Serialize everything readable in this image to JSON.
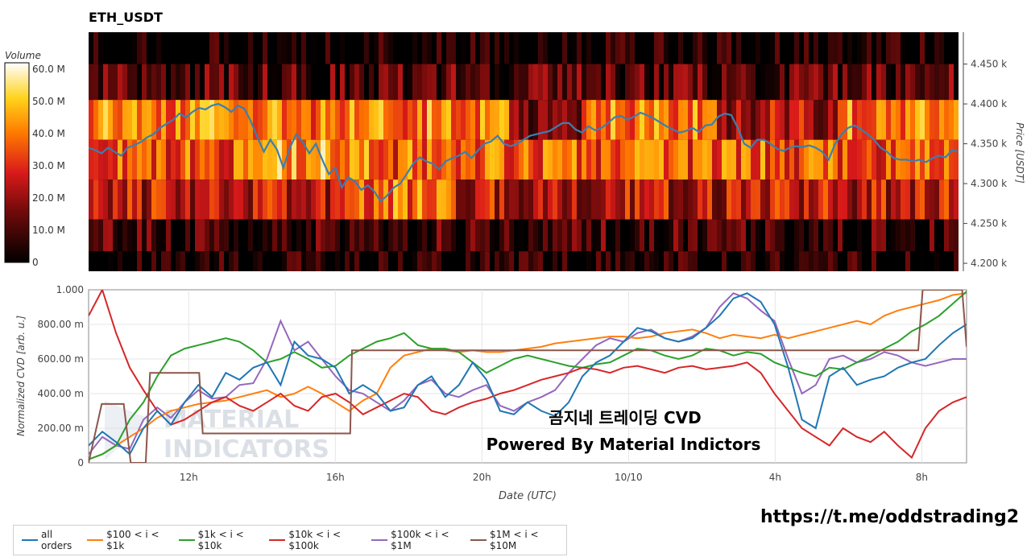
{
  "title": "ETH_USDT",
  "watermark_url": "https://t.me/oddstrading2",
  "overlay_title": "곰지네 트레이딩 CVD",
  "overlay_subtitle": "Powered By Material Indictors",
  "bg_logo_text": [
    "MATERIAL",
    "INDICATORS"
  ],
  "colors": {
    "all": "#1f77b4",
    "s1": "#ff7f0e",
    "s2": "#2ca02c",
    "s3": "#d62728",
    "s4": "#9467bd",
    "s5": "#8c564b"
  },
  "chart_data": [
    {
      "type": "heatmap",
      "title": "ETH_USDT",
      "colorbar_label": "Volume",
      "colorbar_ticks": [
        "60.0 M",
        "50.0 M",
        "40.0 M",
        "30.0 M",
        "20.0 M",
        "10.0 M",
        "0"
      ],
      "colorbar_range": [
        0,
        60000000
      ],
      "ylabel": "Price [USDT]",
      "y_ticks": [
        "4.450 k",
        "4.400 k",
        "4.350 k",
        "4.300 k",
        "4.250 k",
        "4.200 k"
      ],
      "ylim": [
        4190,
        4490
      ],
      "price_bins": [
        4470,
        4430,
        4380,
        4330,
        4280,
        4230,
        4195
      ],
      "price_line": {
        "name": "price",
        "color": "#3a7fb0",
        "values": [
          4345,
          4342,
          4338,
          4345,
          4340,
          4335,
          4345,
          4348,
          4352,
          4358,
          4362,
          4370,
          4375,
          4380,
          4388,
          4383,
          4390,
          4395,
          4393,
          4398,
          4400,
          4396,
          4390,
          4398,
          4394,
          4378,
          4358,
          4340,
          4355,
          4343,
          4320,
          4345,
          4362,
          4352,
          4338,
          4350,
          4330,
          4312,
          4320,
          4295,
          4308,
          4303,
          4292,
          4298,
          4290,
          4278,
          4285,
          4295,
          4300,
          4312,
          4325,
          4333,
          4328,
          4325,
          4318,
          4328,
          4332,
          4335,
          4340,
          4332,
          4342,
          4350,
          4353,
          4360,
          4350,
          4347,
          4350,
          4355,
          4360,
          4362,
          4364,
          4366,
          4371,
          4376,
          4376,
          4368,
          4364,
          4372,
          4367,
          4370,
          4376,
          4383,
          4385,
          4380,
          4384,
          4389,
          4386,
          4382,
          4377,
          4372,
          4368,
          4364,
          4366,
          4370,
          4365,
          4373,
          4374,
          4384,
          4388,
          4386,
          4370,
          4350,
          4345,
          4355,
          4355,
          4350,
          4344,
          4341,
          4345,
          4347,
          4346,
          4348,
          4345,
          4340,
          4330,
          4350,
          4362,
          4370,
          4373,
          4368,
          4362,
          4355,
          4345,
          4340,
          4332,
          4330,
          4330,
          4328,
          4330,
          4327,
          4332,
          4335,
          4333,
          4342,
          4340
        ]
      }
    },
    {
      "type": "line",
      "xlabel": "Date (UTC)",
      "ylabel": "Normalized CVD [arb. u.]",
      "x_ticks": [
        "12h",
        "16h",
        "20h",
        "10/10",
        "4h",
        "8h"
      ],
      "y_ticks": [
        "0",
        "200.00 m",
        "400.00 m",
        "600.00 m",
        "800.00 m",
        "1.000"
      ],
      "ylim": [
        0,
        1
      ],
      "grid": true,
      "legend_position": "bottom-left",
      "series": [
        {
          "name": "all orders",
          "values": [
            0.1,
            0.18,
            0.12,
            0.05,
            0.2,
            0.3,
            0.22,
            0.35,
            0.45,
            0.38,
            0.52,
            0.48,
            0.55,
            0.58,
            0.45,
            0.7,
            0.62,
            0.6,
            0.55,
            0.4,
            0.45,
            0.4,
            0.3,
            0.32,
            0.45,
            0.5,
            0.38,
            0.45,
            0.58,
            0.48,
            0.3,
            0.28,
            0.35,
            0.3,
            0.27,
            0.35,
            0.5,
            0.58,
            0.62,
            0.7,
            0.78,
            0.76,
            0.72,
            0.7,
            0.72,
            0.78,
            0.85,
            0.95,
            0.98,
            0.93,
            0.8,
            0.55,
            0.25,
            0.2,
            0.5,
            0.55,
            0.45,
            0.48,
            0.5,
            0.55,
            0.58,
            0.6,
            0.68,
            0.75,
            0.8
          ]
        },
        {
          "name": "$100 < i < $1k",
          "values": [
            0.02,
            0.05,
            0.1,
            0.15,
            0.2,
            0.26,
            0.3,
            0.32,
            0.34,
            0.35,
            0.36,
            0.38,
            0.4,
            0.42,
            0.38,
            0.4,
            0.44,
            0.4,
            0.35,
            0.3,
            0.36,
            0.4,
            0.55,
            0.62,
            0.64,
            0.66,
            0.65,
            0.64,
            0.65,
            0.64,
            0.64,
            0.65,
            0.66,
            0.67,
            0.69,
            0.7,
            0.71,
            0.72,
            0.73,
            0.73,
            0.72,
            0.73,
            0.75,
            0.76,
            0.77,
            0.75,
            0.72,
            0.74,
            0.73,
            0.72,
            0.74,
            0.72,
            0.74,
            0.76,
            0.78,
            0.8,
            0.82,
            0.8,
            0.85,
            0.88,
            0.9,
            0.92,
            0.94,
            0.97,
            0.98
          ]
        },
        {
          "name": "$1k < i < $10k",
          "values": [
            0.02,
            0.05,
            0.1,
            0.25,
            0.35,
            0.5,
            0.62,
            0.66,
            0.68,
            0.7,
            0.72,
            0.7,
            0.65,
            0.58,
            0.6,
            0.64,
            0.6,
            0.55,
            0.56,
            0.62,
            0.66,
            0.7,
            0.72,
            0.75,
            0.68,
            0.66,
            0.66,
            0.64,
            0.58,
            0.52,
            0.56,
            0.6,
            0.62,
            0.6,
            0.58,
            0.56,
            0.55,
            0.57,
            0.58,
            0.62,
            0.66,
            0.65,
            0.62,
            0.6,
            0.62,
            0.66,
            0.65,
            0.62,
            0.64,
            0.63,
            0.58,
            0.55,
            0.52,
            0.5,
            0.55,
            0.54,
            0.58,
            0.62,
            0.66,
            0.7,
            0.76,
            0.8,
            0.85,
            0.92,
            0.99
          ]
        },
        {
          "name": "$10k < i < $100k",
          "values": [
            0.85,
            1.0,
            0.75,
            0.55,
            0.42,
            0.3,
            0.22,
            0.25,
            0.3,
            0.35,
            0.38,
            0.33,
            0.3,
            0.35,
            0.4,
            0.33,
            0.3,
            0.38,
            0.4,
            0.35,
            0.28,
            0.32,
            0.36,
            0.4,
            0.38,
            0.3,
            0.28,
            0.32,
            0.35,
            0.37,
            0.4,
            0.42,
            0.45,
            0.48,
            0.5,
            0.52,
            0.55,
            0.54,
            0.52,
            0.55,
            0.56,
            0.54,
            0.52,
            0.55,
            0.56,
            0.54,
            0.55,
            0.56,
            0.58,
            0.52,
            0.4,
            0.3,
            0.2,
            0.15,
            0.1,
            0.2,
            0.15,
            0.12,
            0.18,
            0.1,
            0.03,
            0.2,
            0.3,
            0.35,
            0.38
          ]
        },
        {
          "name": "$100k < i < $1M",
          "values": [
            0.05,
            0.15,
            0.1,
            0.08,
            0.25,
            0.32,
            0.26,
            0.35,
            0.42,
            0.37,
            0.38,
            0.45,
            0.46,
            0.6,
            0.82,
            0.65,
            0.7,
            0.6,
            0.5,
            0.42,
            0.4,
            0.35,
            0.3,
            0.36,
            0.45,
            0.48,
            0.4,
            0.38,
            0.42,
            0.45,
            0.33,
            0.3,
            0.35,
            0.38,
            0.42,
            0.52,
            0.6,
            0.68,
            0.72,
            0.7,
            0.75,
            0.77,
            0.72,
            0.7,
            0.73,
            0.78,
            0.9,
            0.98,
            0.95,
            0.88,
            0.82,
            0.6,
            0.4,
            0.45,
            0.6,
            0.62,
            0.58,
            0.6,
            0.64,
            0.62,
            0.58,
            0.56,
            0.58,
            0.6,
            0.6
          ]
        },
        {
          "name": "$1M < i < $10M",
          "steps": [
            [
              0,
              0
            ],
            [
              0.015,
              0.34
            ],
            [
              0.04,
              0.34
            ],
            [
              0.048,
              0.0
            ],
            [
              0.065,
              0.0
            ],
            [
              0.07,
              0.52
            ],
            [
              0.126,
              0.52
            ],
            [
              0.13,
              0.17
            ],
            [
              0.298,
              0.17
            ],
            [
              0.3,
              0.65
            ],
            [
              0.53,
              0.65
            ],
            [
              0.54,
              0.65
            ],
            [
              0.91,
              0.65
            ],
            [
              0.945,
              0.65
            ],
            [
              0.95,
              1.0
            ],
            [
              0.995,
              1.0
            ],
            [
              1.0,
              0.67
            ]
          ]
        }
      ]
    }
  ],
  "legend": [
    {
      "label": "all orders",
      "color": "#1f77b4"
    },
    {
      "label": "$100 < i < $1k",
      "color": "#ff7f0e"
    },
    {
      "label": "$1k < i < $10k",
      "color": "#2ca02c"
    },
    {
      "label": "$10k < i < $100k",
      "color": "#d62728"
    },
    {
      "label": "$100k < i < $1M",
      "color": "#9467bd"
    },
    {
      "label": "$1M < i < $10M",
      "color": "#8c564b"
    }
  ]
}
